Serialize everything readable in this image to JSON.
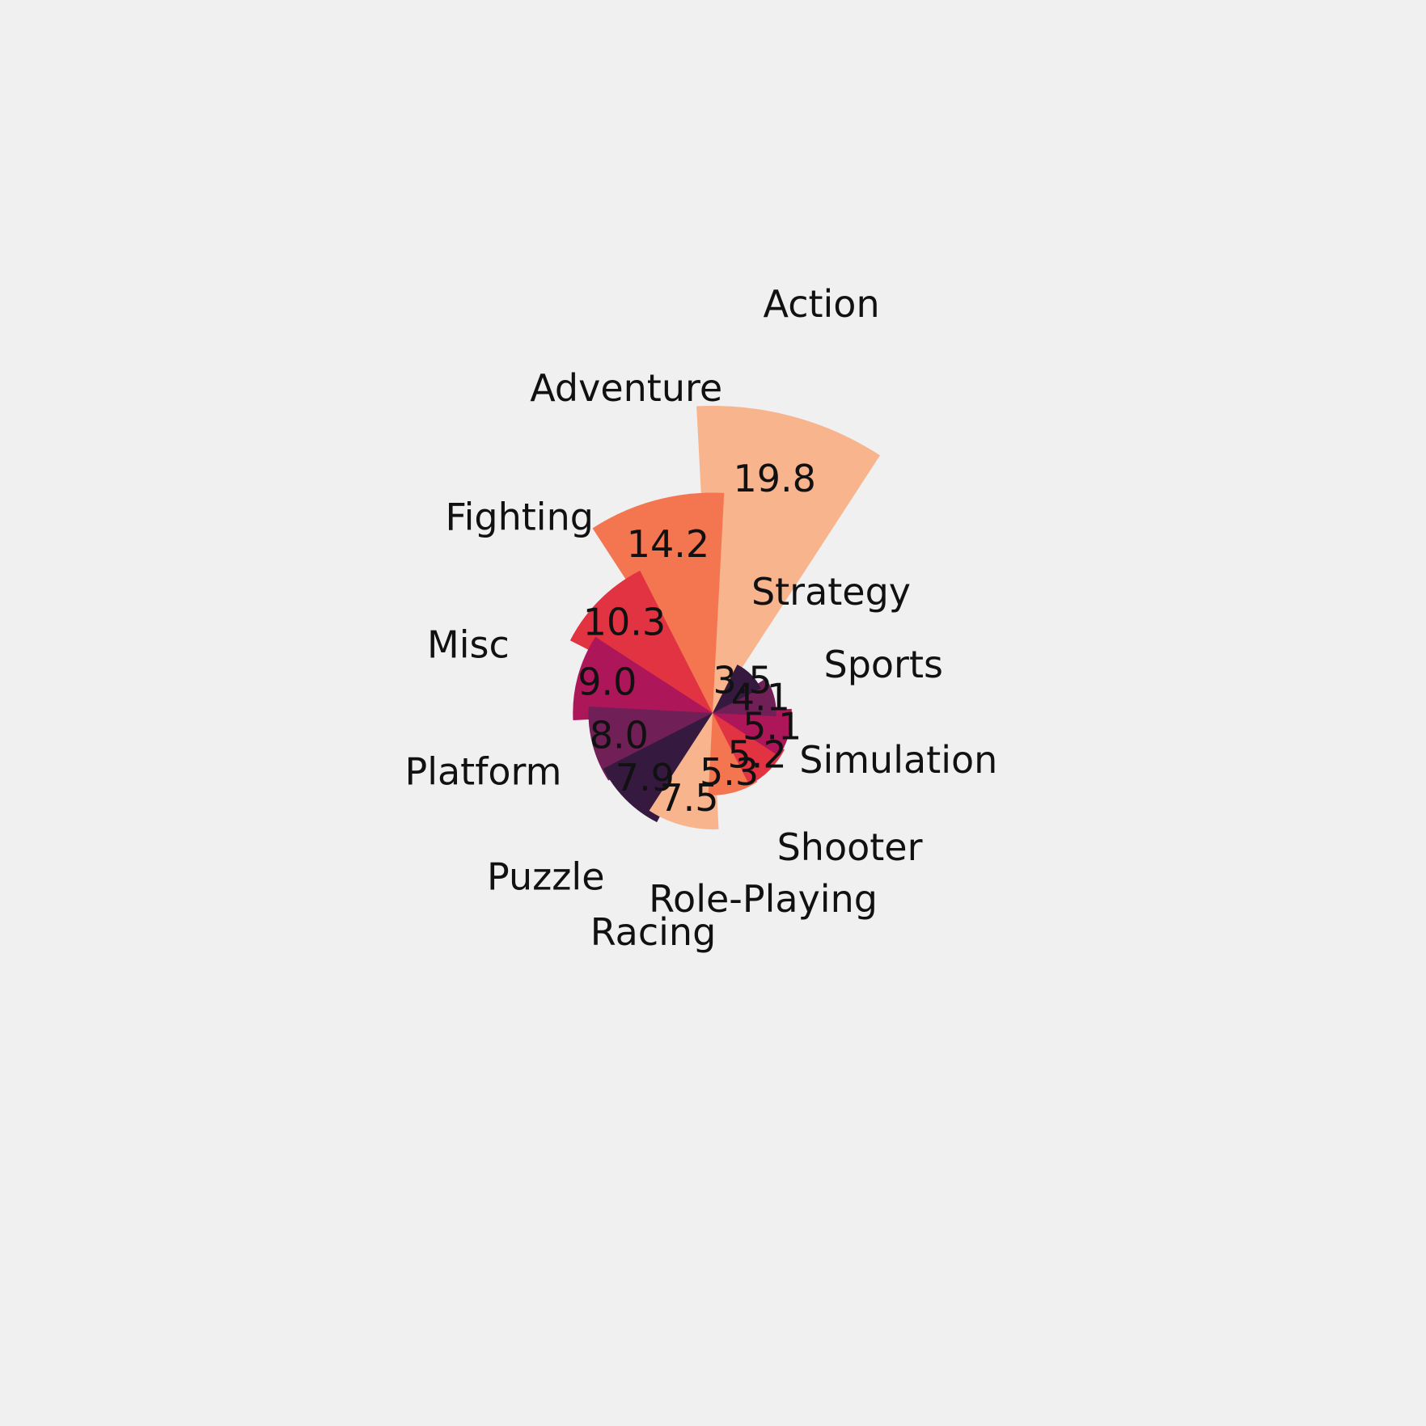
{
  "chart_data": {
    "type": "bar",
    "subtype": "polar-bar",
    "background": "#f0f0f0",
    "categories": [
      "Action",
      "Adventure",
      "Fighting",
      "Misc",
      "Platform",
      "Puzzle",
      "Racing",
      "Role-Playing",
      "Shooter",
      "Simulation",
      "Sports",
      "Strategy"
    ],
    "values": [
      19.8,
      14.2,
      10.3,
      9.0,
      8.0,
      7.9,
      7.5,
      5.3,
      5.2,
      5.1,
      4.1,
      3.5
    ],
    "colors": [
      "#f7b48d",
      "#f37651",
      "#e13342",
      "#ad1759",
      "#701f57",
      "#35193e",
      "#f7b48d",
      "#f37651",
      "#e13342",
      "#ad1759",
      "#701f57",
      "#35193e"
    ],
    "value_labels": [
      "19.8",
      "14.2",
      "10.3",
      "9.0",
      "8.0",
      "7.9",
      "7.5",
      "5.3",
      "5.2",
      "5.1",
      "4.1",
      "3.5"
    ],
    "title": "",
    "grid": false,
    "legend": "none"
  }
}
